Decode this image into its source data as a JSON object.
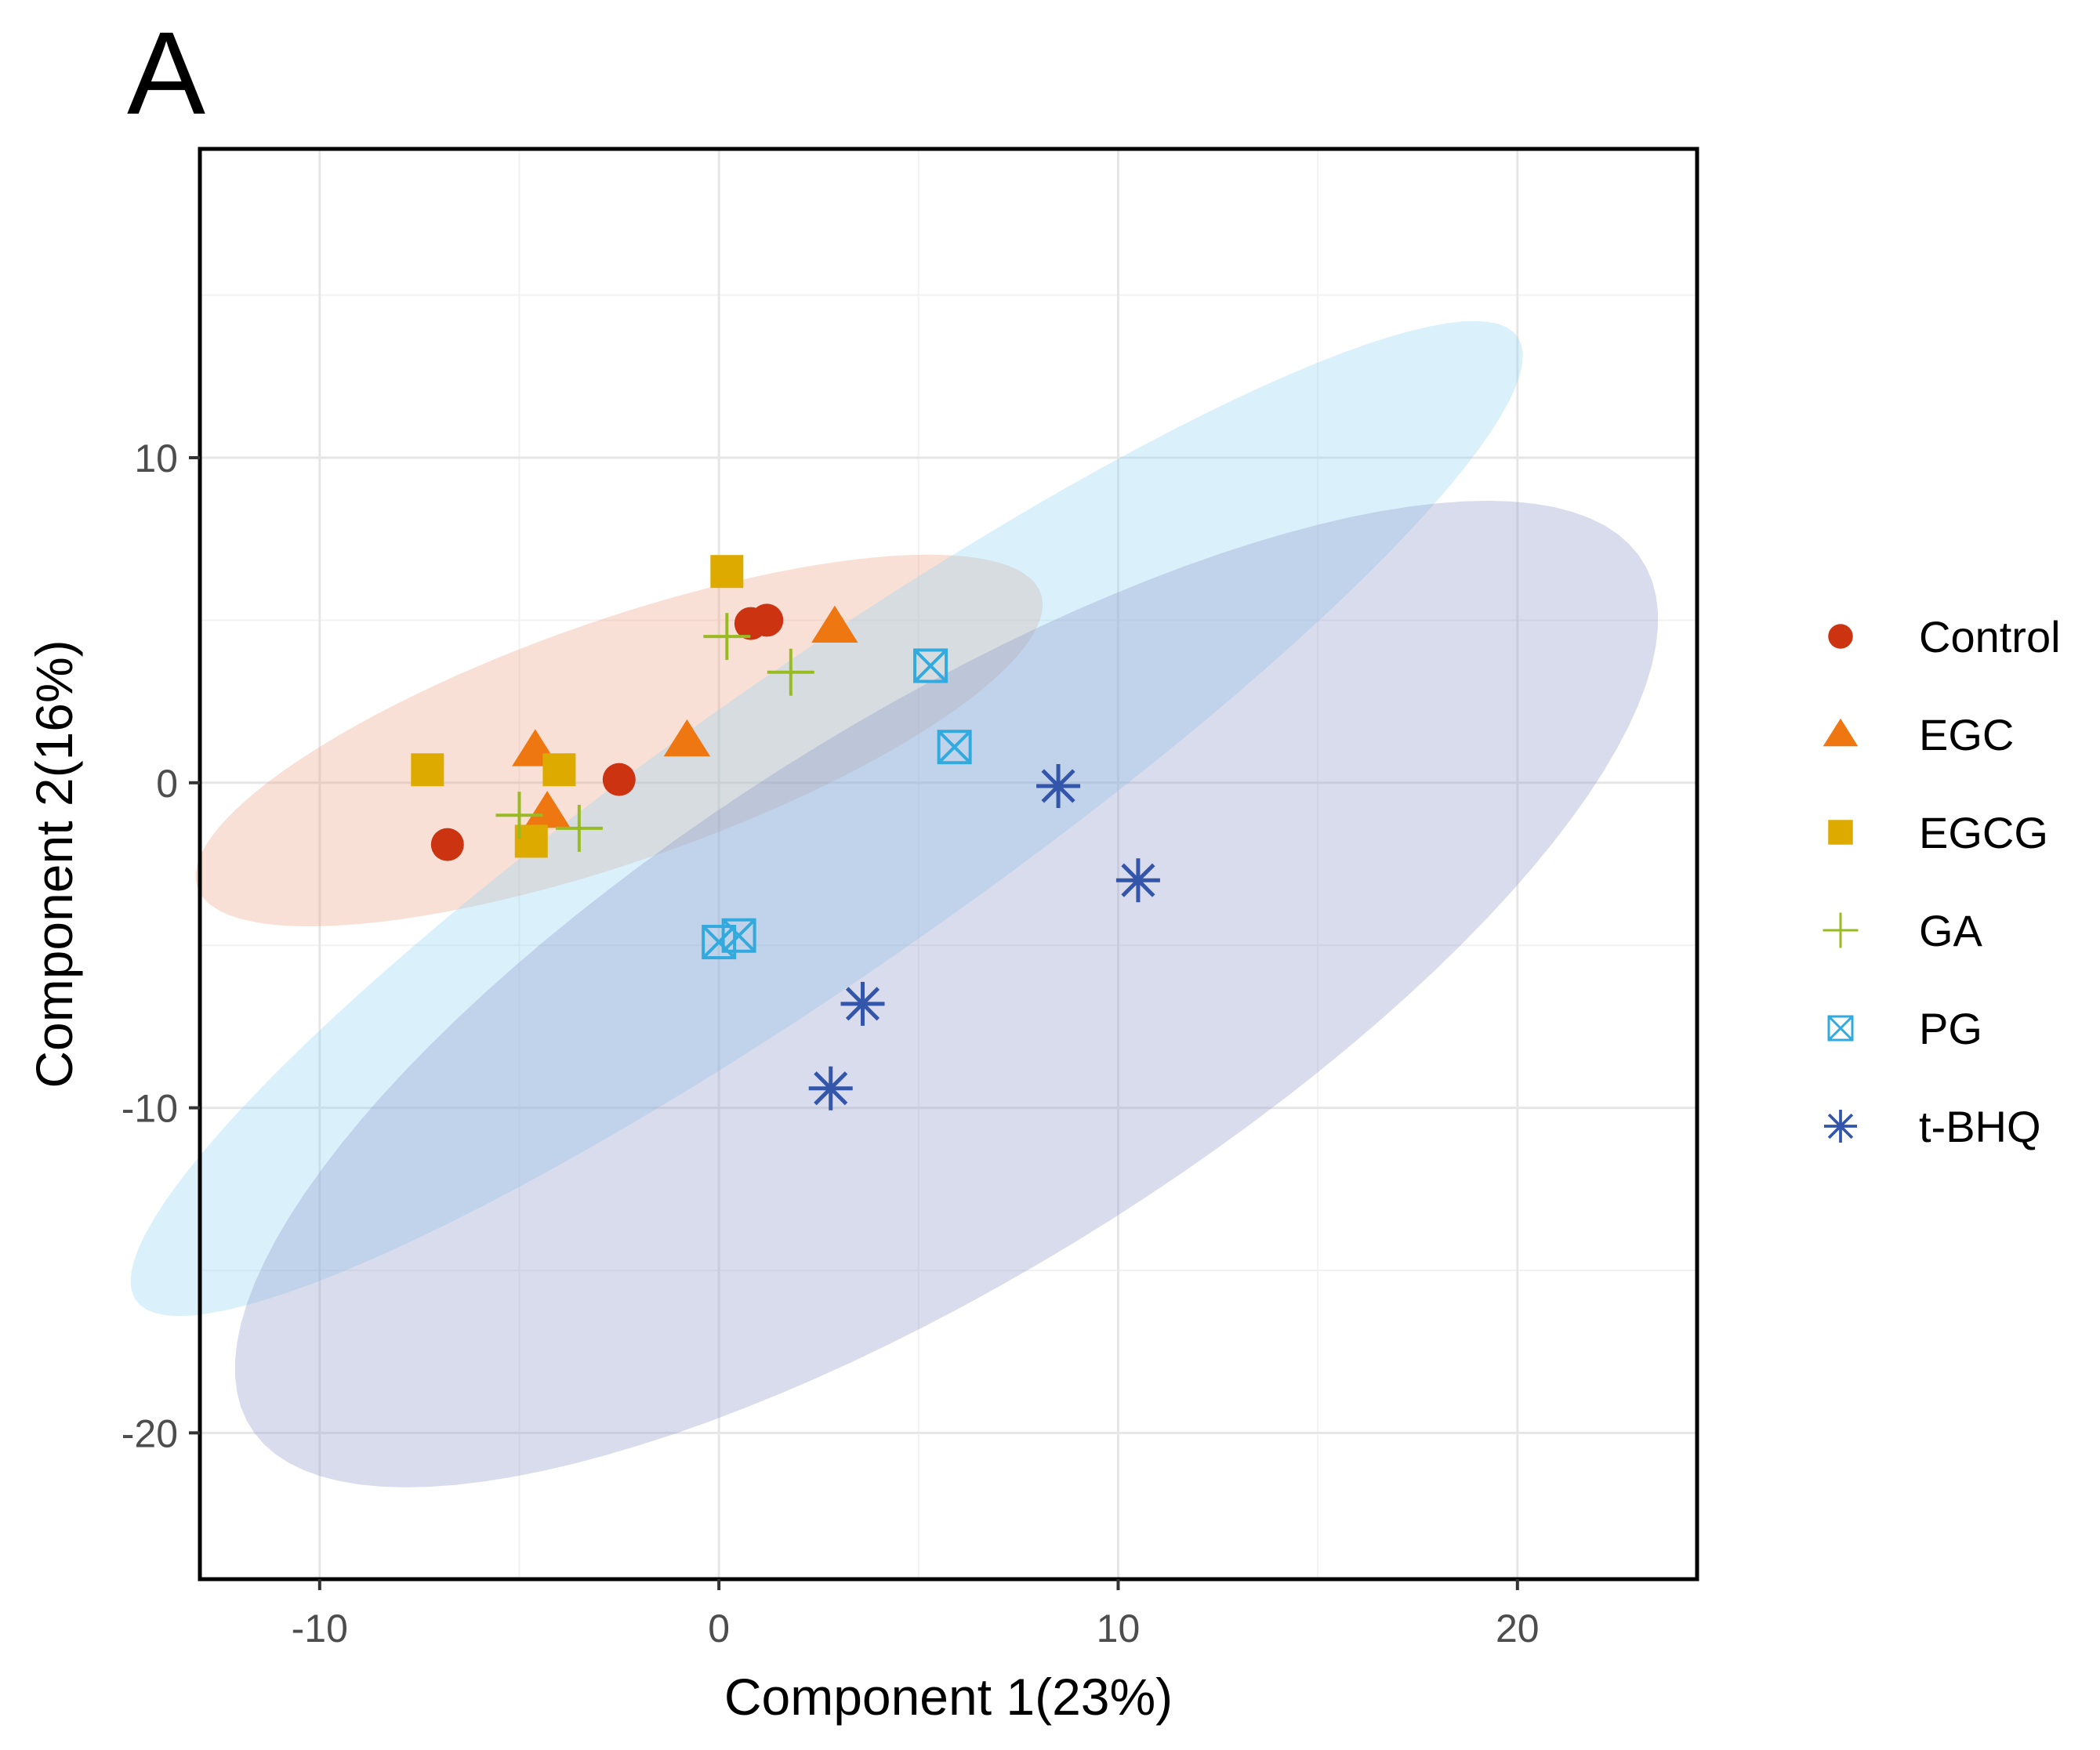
{
  "panel_label": "A",
  "colors": {
    "Control": "#cc3311",
    "EGC": "#ee7711",
    "EGCG": "#ddaa00",
    "GA": "#99bb22",
    "PG": "#33aadd",
    "t-BHQ": "#3355aa"
  },
  "chart_data": {
    "type": "scatter",
    "title": "",
    "xlabel": "Component 1(23%)",
    "ylabel": "Component 2(16%)",
    "xlim": [
      -13,
      24.5
    ],
    "ylim": [
      -24.5,
      19.5
    ],
    "xticks": [
      -10,
      0,
      10,
      20
    ],
    "yticks": [
      -20,
      -10,
      0,
      10
    ],
    "xtick_labels": [
      "-10",
      "0",
      "10",
      "20"
    ],
    "ytick_labels": [
      "-20",
      "-10",
      "0",
      "10"
    ],
    "grid": true,
    "legend_position": "right",
    "series": [
      {
        "name": "Control",
        "shape": "circle",
        "x": [
          -6.8,
          -2.5,
          0.8,
          1.2
        ],
        "y": [
          -1.9,
          0.1,
          4.9,
          5.0
        ]
      },
      {
        "name": "EGC",
        "shape": "triangle",
        "x": [
          -4.6,
          -4.3,
          -0.8,
          2.9
        ],
        "y": [
          1.0,
          -0.9,
          1.3,
          4.8
        ]
      },
      {
        "name": "EGCG",
        "shape": "square",
        "x": [
          -7.3,
          -4.7,
          -4.0,
          0.2
        ],
        "y": [
          0.4,
          -1.8,
          0.4,
          6.5
        ]
      },
      {
        "name": "GA",
        "shape": "plus",
        "x": [
          -5.0,
          -3.5,
          0.2,
          1.8
        ],
        "y": [
          -1.0,
          -1.4,
          4.5,
          3.4
        ]
      },
      {
        "name": "PG",
        "shape": "square-x",
        "x": [
          0.0,
          0.5,
          5.3,
          5.9
        ],
        "y": [
          -4.9,
          -4.7,
          3.6,
          1.1
        ]
      },
      {
        "name": "t-BHQ",
        "shape": "asterisk",
        "x": [
          2.8,
          3.6,
          8.5,
          10.5
        ],
        "y": [
          -9.4,
          -6.8,
          -0.1,
          -3.0
        ]
      }
    ],
    "ellipses": [
      {
        "group": "Control",
        "center": [
          -2.5,
          1.3
        ],
        "semi_major": 11.5,
        "semi_minor": 3.6,
        "angle_deg": 24
      },
      {
        "group": "PG",
        "center": [
          2.7,
          -1.1
        ],
        "semi_major": 22.8,
        "semi_minor": 4.3,
        "angle_deg": 41
      },
      {
        "group": "t-BHQ",
        "center": [
          5.7,
          -6.5
        ],
        "semi_major": 22.0,
        "semi_minor": 8.0,
        "angle_deg": 39
      }
    ],
    "legend": [
      "Control",
      "EGC",
      "EGCG",
      "GA",
      "PG",
      "t-BHQ"
    ]
  }
}
